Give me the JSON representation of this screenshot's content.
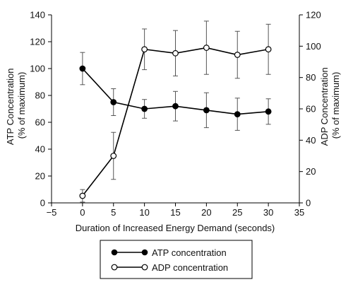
{
  "chart_data": {
    "type": "line",
    "xlabel": "Duration of Increased Energy Demand (seconds)",
    "ylabel_left": [
      "ATP Concentration",
      "(% of maximum)"
    ],
    "ylabel_right": [
      "ADP Concentration",
      "(% of maximum)"
    ],
    "xlim": [
      -5,
      35
    ],
    "ylim_left": [
      0,
      140
    ],
    "ylim_right": [
      0,
      120
    ],
    "x_ticks": [
      -5,
      0,
      5,
      10,
      15,
      20,
      25,
      30,
      35
    ],
    "x_tick_labels": [
      "−5",
      "0",
      "5",
      "10",
      "15",
      "20",
      "25",
      "30",
      "35"
    ],
    "y_left_ticks": [
      0,
      20,
      40,
      60,
      80,
      100,
      120,
      140
    ],
    "y_right_ticks": [
      0,
      20,
      40,
      60,
      80,
      100,
      120
    ],
    "grid": false,
    "legend_position": "bottom-center",
    "series": [
      {
        "name": "ATP concentration",
        "axis": "left",
        "marker": "filled-circle",
        "color": "#000000",
        "x": [
          0,
          5,
          10,
          15,
          20,
          25,
          30
        ],
        "y": [
          100,
          75,
          70,
          72,
          69,
          66,
          68
        ],
        "err": [
          12,
          10,
          7,
          11,
          13,
          12,
          9.5
        ]
      },
      {
        "name": "ADP concentration",
        "axis": "right",
        "marker": "open-circle",
        "color": "#000000",
        "x": [
          0,
          5,
          10,
          15,
          20,
          25,
          30
        ],
        "y": [
          4.5,
          30,
          98,
          95.5,
          99,
          94.5,
          98
        ],
        "err": [
          4,
          15,
          13,
          14.5,
          17,
          15,
          16
        ]
      }
    ]
  }
}
